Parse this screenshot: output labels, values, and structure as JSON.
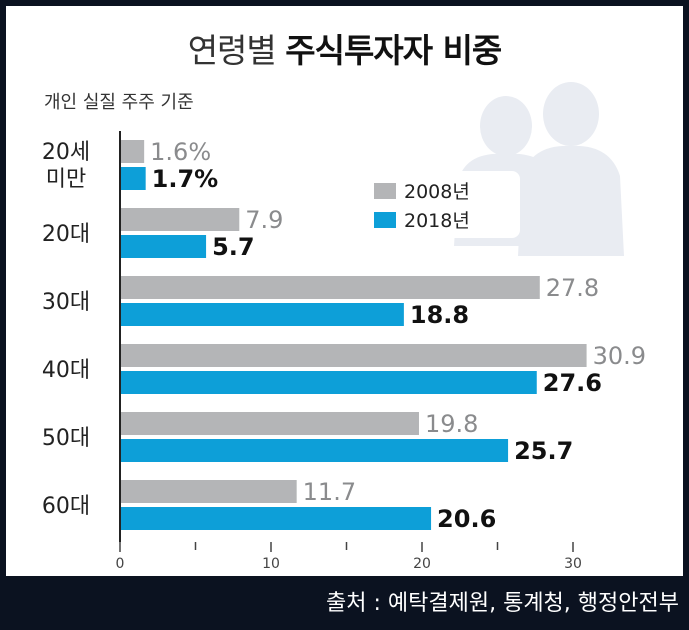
{
  "header": {
    "title_light": "연령별",
    "title_bold": "주식투자자 비중",
    "subtitle": "개인 실질 주주 기준"
  },
  "footer": {
    "source": "출처 : 예탁결제원, 통계청, 행정안전부"
  },
  "colors": {
    "series_2008": "#b4b5b7",
    "series_2018": "#0d9fd8",
    "background": "#ffffff",
    "frame": "#0b1220"
  },
  "chart_data": {
    "type": "bar",
    "orientation": "horizontal",
    "categories": [
      [
        "20세",
        "미만"
      ],
      [
        "20대"
      ],
      [
        "30대"
      ],
      [
        "40대"
      ],
      [
        "50대"
      ],
      [
        "60대"
      ]
    ],
    "series": [
      {
        "name": "2008년",
        "values": [
          1.6,
          7.9,
          27.8,
          30.9,
          19.8,
          11.7
        ],
        "labels": [
          "1.6%",
          "7.9",
          "27.8",
          "30.9",
          "19.8",
          "11.7"
        ]
      },
      {
        "name": "2018년",
        "values": [
          1.7,
          5.7,
          18.8,
          27.6,
          25.7,
          20.6
        ],
        "labels": [
          "1.7%",
          "5.7",
          "18.8",
          "27.6",
          "25.7",
          "20.6"
        ]
      }
    ],
    "x_ticks": [
      0,
      10,
      20,
      30
    ],
    "xlim": [
      0,
      35
    ],
    "legend_position": "top-right",
    "grid": false
  }
}
